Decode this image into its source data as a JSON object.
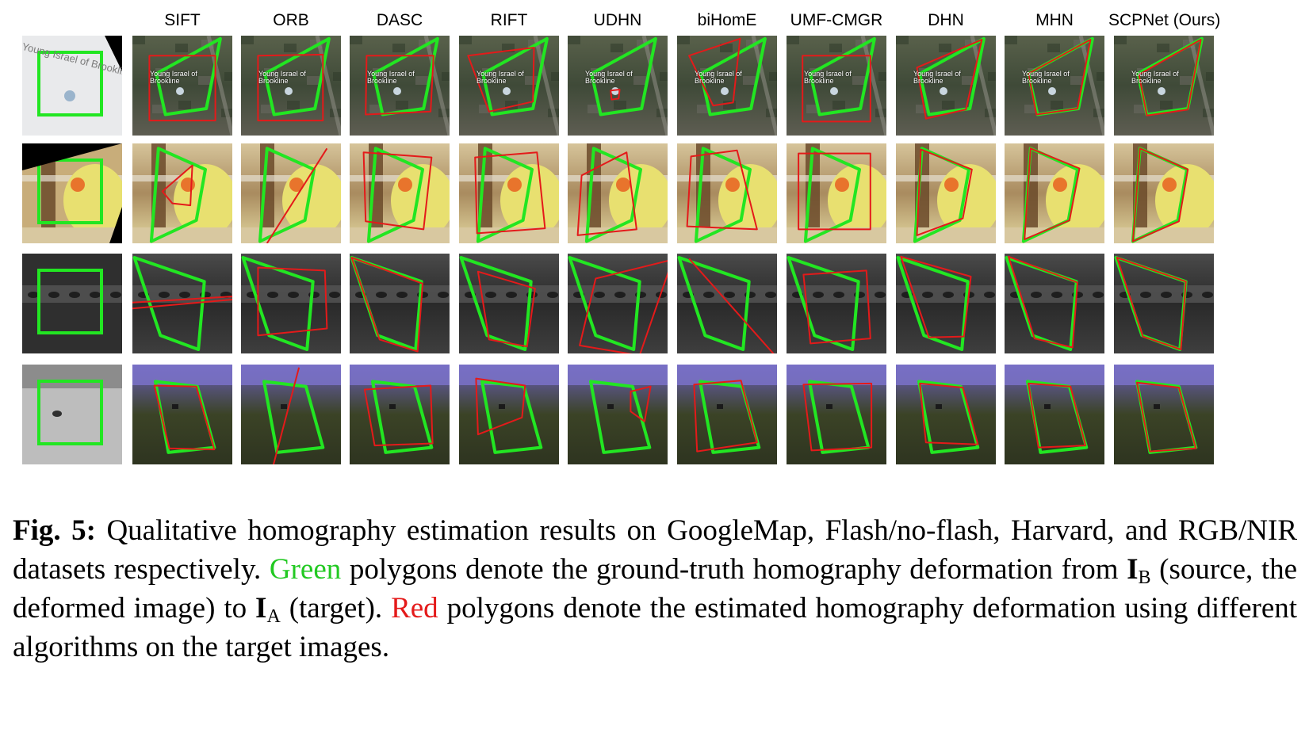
{
  "figure": {
    "methods": [
      "SIFT",
      "ORB",
      "DASC",
      "RIFT",
      "UDHN",
      "biHomE",
      "UMF-CMGR",
      "DHN",
      "MHN",
      "SCPNet (Ours)"
    ],
    "rows": [
      {
        "dataset": "GoogleMap",
        "source_tile_label": "Young Israel of Brookline",
        "target_tile_labels": [
          "Young Israel of Brookline"
        ]
      },
      {
        "dataset": "Flash/no-flash"
      },
      {
        "dataset": "Harvard"
      },
      {
        "dataset": "RGB/NIR"
      }
    ],
    "colors": {
      "ground_truth": "#22e622",
      "estimate": "#e41a1a",
      "green_text": "#22c922",
      "red_text": "#e41a1a"
    }
  },
  "caption": {
    "label": "Fig. 5:",
    "text_1": "Qualitative homography estimation results on GoogleMap, Flash/no-flash, Harvard, and RGB/NIR datasets respectively.",
    "green_word": "Green",
    "text_2": "polygons denote the ground-truth homography deformation from",
    "sym_b": "I",
    "sub_b": "B",
    "text_3": "(source, the deformed image) to",
    "sym_a": "I",
    "sub_a": "A",
    "text_4": "(target).",
    "red_word": "Red",
    "text_5": "polygons denote the estimated homography deformation using different algorithms on the target images."
  }
}
